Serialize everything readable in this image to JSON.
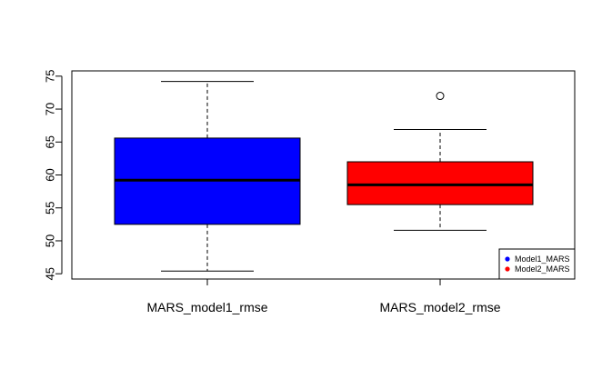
{
  "chart_data": {
    "type": "boxplot",
    "title": "",
    "xlabel": "",
    "ylabel": "",
    "ylim": [
      44.2,
      75.8
    ],
    "yticks": [
      45,
      50,
      55,
      60,
      65,
      70,
      75
    ],
    "categories": [
      "MARS_model1_rmse",
      "MARS_model2_rmse"
    ],
    "boxes": [
      {
        "category": "MARS_model1_rmse",
        "whisker_low": 45.4,
        "q1": 52.5,
        "median": 59.2,
        "q3": 65.6,
        "whisker_high": 74.2,
        "outliers": [],
        "color": "#0000ff"
      },
      {
        "category": "MARS_model2_rmse",
        "whisker_low": 51.6,
        "q1": 55.5,
        "median": 58.5,
        "q3": 62.0,
        "whisker_high": 66.9,
        "outliers": [
          72.0
        ],
        "color": "#ff0000"
      }
    ],
    "legend": {
      "placement": "bottom-right",
      "entries": [
        {
          "label": "Model1_MARS",
          "color": "#0000ff"
        },
        {
          "label": "Model2_MARS",
          "color": "#ff0000"
        }
      ]
    }
  }
}
